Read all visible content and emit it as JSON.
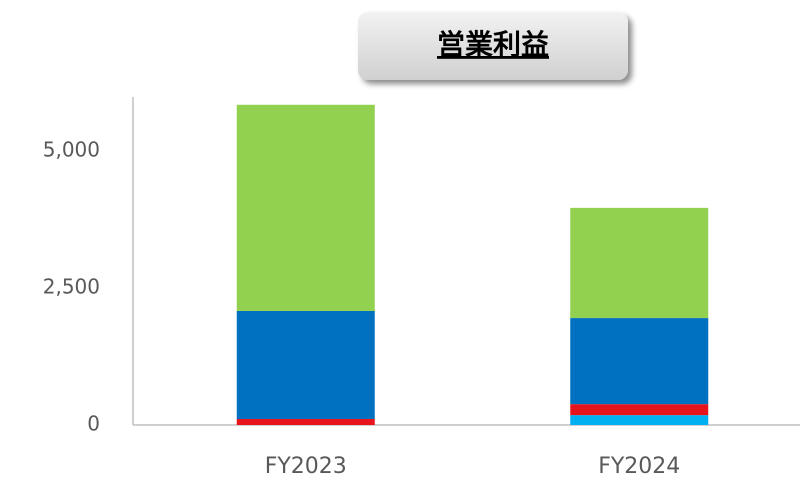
{
  "chart_data": {
    "type": "stacked_bar",
    "title": "営業利益",
    "categories": [
      "FY2023",
      "FY2024"
    ],
    "series": [
      {
        "color": "#00b0f0",
        "values": [
          0,
          180
        ]
      },
      {
        "color": "#e8141c",
        "values": [
          110,
          200
        ]
      },
      {
        "color": "#0070c0",
        "values": [
          1970,
          1570
        ]
      },
      {
        "color": "#92d050",
        "values": [
          3760,
          2010
        ]
      }
    ],
    "ylim": [
      0,
      6000
    ],
    "yticks": [
      0,
      {
        "value": 2500,
        "label": "2,500"
      },
      {
        "value": 5000,
        "label": "5,000"
      }
    ],
    "grid": false
  }
}
